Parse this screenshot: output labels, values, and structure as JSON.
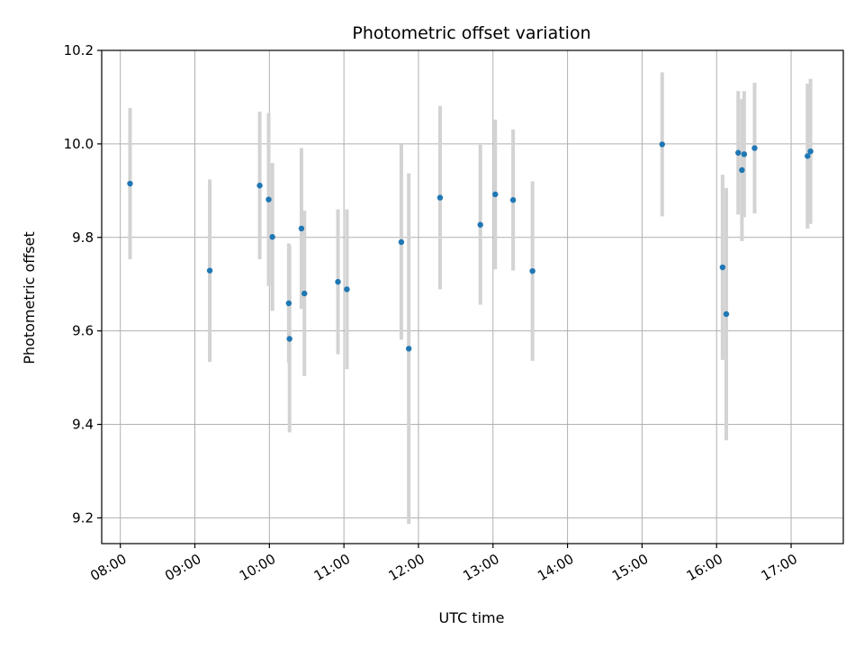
{
  "chart_data": {
    "type": "scatter",
    "title": "Photometric offset variation",
    "xlabel": "UTC time",
    "ylabel": "Photometric offset",
    "x_unit": "hour of day (UTC)",
    "xlim": [
      7.75,
      17.7
    ],
    "ylim": [
      9.145,
      10.2
    ],
    "x_ticks": [
      8,
      9,
      10,
      11,
      12,
      13,
      14,
      15,
      16,
      17
    ],
    "x_tick_labels": [
      "08:00",
      "09:00",
      "10:00",
      "11:00",
      "12:00",
      "13:00",
      "14:00",
      "15:00",
      "16:00",
      "17:00"
    ],
    "y_ticks": [
      9.2,
      9.4,
      9.6,
      9.8,
      10.0,
      10.2
    ],
    "y_tick_labels": [
      "9.2",
      "9.4",
      "9.6",
      "9.8",
      "10.0",
      "10.2"
    ],
    "grid": true,
    "marker_color": "#1f77b4",
    "errorbar_color": "#d3d3d3",
    "points": [
      {
        "x": 8.13,
        "y": 9.915,
        "yerr": 0.162
      },
      {
        "x": 9.2,
        "y": 9.729,
        "yerr": 0.195
      },
      {
        "x": 9.87,
        "y": 9.911,
        "yerr": 0.158
      },
      {
        "x": 9.99,
        "y": 9.881,
        "yerr": 0.185
      },
      {
        "x": 10.04,
        "y": 9.801,
        "yerr": 0.158
      },
      {
        "x": 10.26,
        "y": 9.659,
        "yerr": 0.128
      },
      {
        "x": 10.27,
        "y": 9.583,
        "yerr": 0.2
      },
      {
        "x": 10.43,
        "y": 9.819,
        "yerr": 0.172
      },
      {
        "x": 10.47,
        "y": 9.68,
        "yerr": 0.177
      },
      {
        "x": 10.92,
        "y": 9.705,
        "yerr": 0.155
      },
      {
        "x": 11.04,
        "y": 9.689,
        "yerr": 0.171
      },
      {
        "x": 11.77,
        "y": 9.79,
        "yerr": 0.209
      },
      {
        "x": 11.87,
        "y": 9.562,
        "yerr": 0.375
      },
      {
        "x": 12.29,
        "y": 9.885,
        "yerr": 0.196
      },
      {
        "x": 12.83,
        "y": 9.827,
        "yerr": 0.171
      },
      {
        "x": 13.03,
        "y": 9.892,
        "yerr": 0.16
      },
      {
        "x": 13.27,
        "y": 9.88,
        "yerr": 0.151
      },
      {
        "x": 13.53,
        "y": 9.728,
        "yerr": 0.192
      },
      {
        "x": 15.27,
        "y": 9.999,
        "yerr": 0.154
      },
      {
        "x": 16.08,
        "y": 9.736,
        "yerr": 0.198
      },
      {
        "x": 16.13,
        "y": 9.636,
        "yerr": 0.27
      },
      {
        "x": 16.29,
        "y": 9.981,
        "yerr": 0.132
      },
      {
        "x": 16.34,
        "y": 9.944,
        "yerr": 0.152
      },
      {
        "x": 16.37,
        "y": 9.978,
        "yerr": 0.135
      },
      {
        "x": 16.51,
        "y": 9.991,
        "yerr": 0.14
      },
      {
        "x": 17.22,
        "y": 9.974,
        "yerr": 0.155
      },
      {
        "x": 17.26,
        "y": 9.984,
        "yerr": 0.155
      }
    ]
  }
}
